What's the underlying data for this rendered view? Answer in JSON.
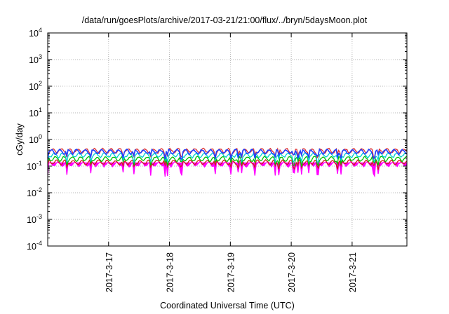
{
  "chart_data": {
    "type": "line",
    "title": "/data/run/goesPlots/archive/2017-03-21/21:00/flux/../bryn/5daysMoon.plot",
    "xlabel": "Coordinated Universal Time (UTC)",
    "ylabel": "cGy/day",
    "yscale": "log",
    "ylim": [
      0.0001,
      10000
    ],
    "xlim_days": [
      16.0,
      21.9
    ],
    "grid": true,
    "legend": "none",
    "x_ticks": [
      "2017-3-17",
      "2017-3-18",
      "2017-3-19",
      "2017-3-20",
      "2017-3-21"
    ],
    "y_ticks": [
      {
        "base": "10",
        "exp": "4"
      },
      {
        "base": "10",
        "exp": "3"
      },
      {
        "base": "10",
        "exp": "2"
      },
      {
        "base": "10",
        "exp": "1"
      },
      {
        "base": "10",
        "exp": "0"
      },
      {
        "base": "10",
        "exp": "-1"
      },
      {
        "base": "10",
        "exp": "-2"
      },
      {
        "base": "10",
        "exp": "-3"
      },
      {
        "base": "10",
        "exp": "-4"
      }
    ],
    "series": [
      {
        "color": "#ff00ff",
        "fill": true,
        "baseline": 0.12,
        "min": 0.04
      },
      {
        "color": "#d01c1c",
        "baseline": 0.14
      },
      {
        "color": "#00c000",
        "baseline": 0.19
      },
      {
        "color": "#00d0d0",
        "baseline": 0.26
      },
      {
        "color": "#e03030",
        "baseline": 0.38
      },
      {
        "color": "#2040ff",
        "baseline": 0.35
      }
    ]
  }
}
